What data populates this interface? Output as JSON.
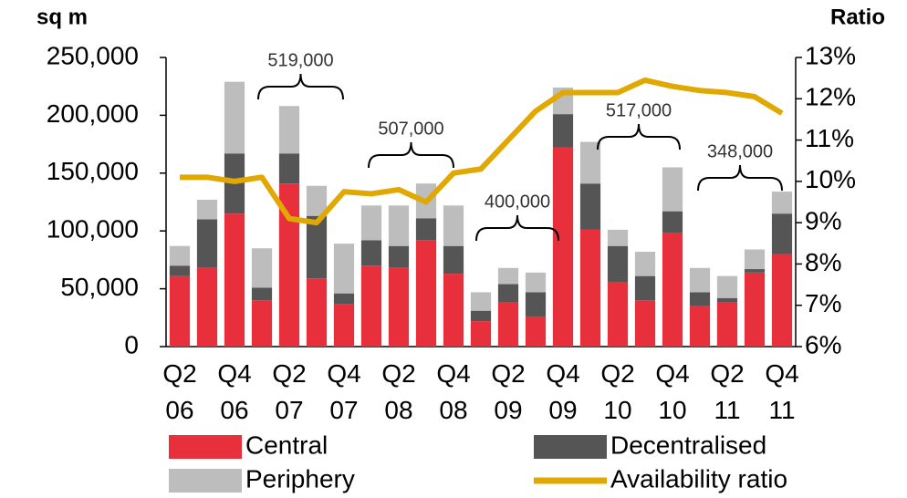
{
  "chart_data": {
    "type": "bar",
    "y_label": "sq m",
    "y2_label": "Ratio",
    "categories": [
      "Q2 06",
      null,
      "Q4 06",
      null,
      "Q2 07",
      null,
      "Q4 07",
      null,
      "Q2 08",
      null,
      "Q4 08",
      null,
      "Q2 09",
      null,
      "Q4 09",
      null,
      "Q2 10",
      null,
      "Q4 10",
      null,
      "Q2 11",
      null,
      "Q4 11"
    ],
    "series": [
      {
        "name": "Central",
        "color": "#e8303c",
        "values": [
          61000,
          68000,
          115000,
          40000,
          141000,
          59000,
          37000,
          70000,
          68000,
          92000,
          63000,
          22000,
          38000,
          26000,
          172000,
          101000,
          56000,
          40000,
          98000,
          35000,
          38000,
          64000,
          80000
        ]
      },
      {
        "name": "Decentralised",
        "color": "#555555",
        "values": [
          9000,
          42000,
          52000,
          11000,
          26000,
          54000,
          9000,
          22000,
          19000,
          19000,
          24000,
          9000,
          16000,
          21000,
          29000,
          40000,
          31000,
          21000,
          19000,
          12000,
          4000,
          3000,
          35000
        ]
      },
      {
        "name": "Periphery",
        "color": "#bdbdbd",
        "values": [
          17000,
          17000,
          62000,
          34000,
          41000,
          26000,
          43000,
          30000,
          35000,
          30000,
          35000,
          16000,
          14000,
          17000,
          23000,
          36000,
          14000,
          21000,
          38000,
          21000,
          19000,
          17000,
          19000
        ]
      },
      {
        "name": "Availability ratio",
        "color": "#e0a800",
        "axis": "y2",
        "type": "line",
        "values": [
          10.1,
          10.1,
          10.0,
          10.1,
          9.1,
          9.0,
          9.75,
          9.7,
          9.8,
          9.5,
          10.2,
          10.3,
          11.0,
          11.7,
          12.15,
          12.15,
          12.15,
          12.45,
          12.3,
          12.2,
          12.15,
          12.05,
          11.65
        ]
      }
    ],
    "ylim": [
      0,
      250000
    ],
    "yticks": [
      0,
      {
        "value": 50000,
        "label": "50,000"
      },
      {
        "value": 100000,
        "label": "100,000"
      },
      {
        "value": 150000,
        "label": "150,000"
      },
      {
        "value": 200000,
        "label": "200,000"
      },
      {
        "value": 250000,
        "label": "250,000"
      }
    ],
    "y2lim": [
      6,
      13
    ],
    "y2ticks": [
      {
        "value": 6,
        "label": "6%"
      },
      {
        "value": 7,
        "label": "7%"
      },
      {
        "value": 8,
        "label": "8%"
      },
      {
        "value": 9,
        "label": "9%"
      },
      {
        "value": 10,
        "label": "10%"
      },
      {
        "value": 11,
        "label": "11%"
      },
      {
        "value": 12,
        "label": "12%"
      },
      {
        "value": 13,
        "label": "13%"
      }
    ],
    "annotations": [
      "519,000",
      "507,000",
      "400,000",
      "517,000",
      "348,000"
    ],
    "legend": "bottom"
  }
}
